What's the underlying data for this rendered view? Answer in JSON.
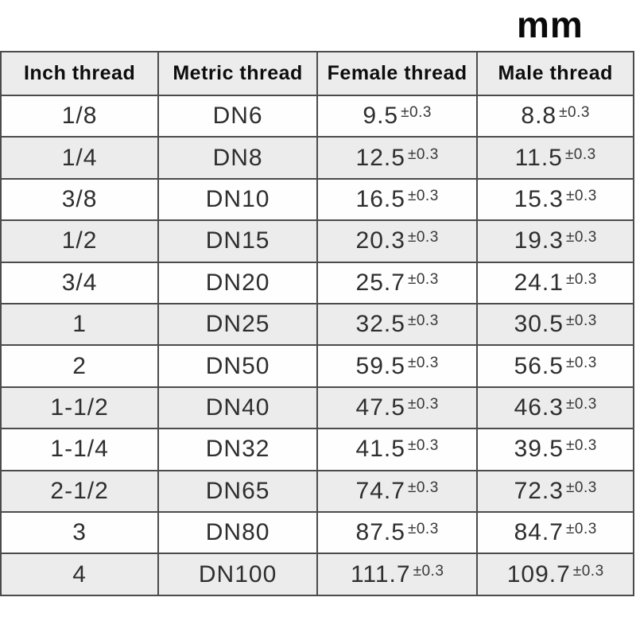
{
  "unit_label": "mm",
  "colors": {
    "header_bg": "#ececec",
    "row_alt_bg": "#ececec",
    "row_bg": "#fefefe",
    "border": "#4b4b4b",
    "text": "#2e2e2e"
  },
  "chart_data": {
    "type": "table",
    "unit": "mm",
    "tolerance": "±0.3",
    "columns": [
      "Inch thread",
      "Metric thread",
      "Female thread",
      "Male thread"
    ],
    "rows": [
      {
        "inch_thread": "1/8",
        "metric_thread": "DN6",
        "female_thread_mm": "9.5",
        "female_tolerance": "±0.3",
        "male_thread_mm": "8.8",
        "male_tolerance": "±0.3"
      },
      {
        "inch_thread": "1/4",
        "metric_thread": "DN8",
        "female_thread_mm": "12.5",
        "female_tolerance": "±0.3",
        "male_thread_mm": "11.5",
        "male_tolerance": "±0.3"
      },
      {
        "inch_thread": "3/8",
        "metric_thread": "DN10",
        "female_thread_mm": "16.5",
        "female_tolerance": "±0.3",
        "male_thread_mm": "15.3",
        "male_tolerance": "±0.3"
      },
      {
        "inch_thread": "1/2",
        "metric_thread": "DN15",
        "female_thread_mm": "20.3",
        "female_tolerance": "±0.3",
        "male_thread_mm": "19.3",
        "male_tolerance": "±0.3"
      },
      {
        "inch_thread": "3/4",
        "metric_thread": "DN20",
        "female_thread_mm": "25.7",
        "female_tolerance": "±0.3",
        "male_thread_mm": "24.1",
        "male_tolerance": "±0.3"
      },
      {
        "inch_thread": "1",
        "metric_thread": "DN25",
        "female_thread_mm": "32.5",
        "female_tolerance": "±0.3",
        "male_thread_mm": "30.5",
        "male_tolerance": "±0.3"
      },
      {
        "inch_thread": "2",
        "metric_thread": "DN50",
        "female_thread_mm": "59.5",
        "female_tolerance": "±0.3",
        "male_thread_mm": "56.5",
        "male_tolerance": "±0.3"
      },
      {
        "inch_thread": "1-1/2",
        "metric_thread": "DN40",
        "female_thread_mm": "47.5",
        "female_tolerance": "±0.3",
        "male_thread_mm": "46.3",
        "male_tolerance": "±0.3"
      },
      {
        "inch_thread": "1-1/4",
        "metric_thread": "DN32",
        "female_thread_mm": "41.5",
        "female_tolerance": "±0.3",
        "male_thread_mm": "39.5",
        "male_tolerance": "±0.3"
      },
      {
        "inch_thread": "2-1/2",
        "metric_thread": "DN65",
        "female_thread_mm": "74.7",
        "female_tolerance": "±0.3",
        "male_thread_mm": "72.3",
        "male_tolerance": "±0.3"
      },
      {
        "inch_thread": "3",
        "metric_thread": "DN80",
        "female_thread_mm": "87.5",
        "female_tolerance": "±0.3",
        "male_thread_mm": "84.7",
        "male_tolerance": "±0.3"
      },
      {
        "inch_thread": "4",
        "metric_thread": "DN100",
        "female_thread_mm": "111.7",
        "female_tolerance": "±0.3",
        "male_thread_mm": "109.7",
        "male_tolerance": "±0.3"
      }
    ]
  }
}
